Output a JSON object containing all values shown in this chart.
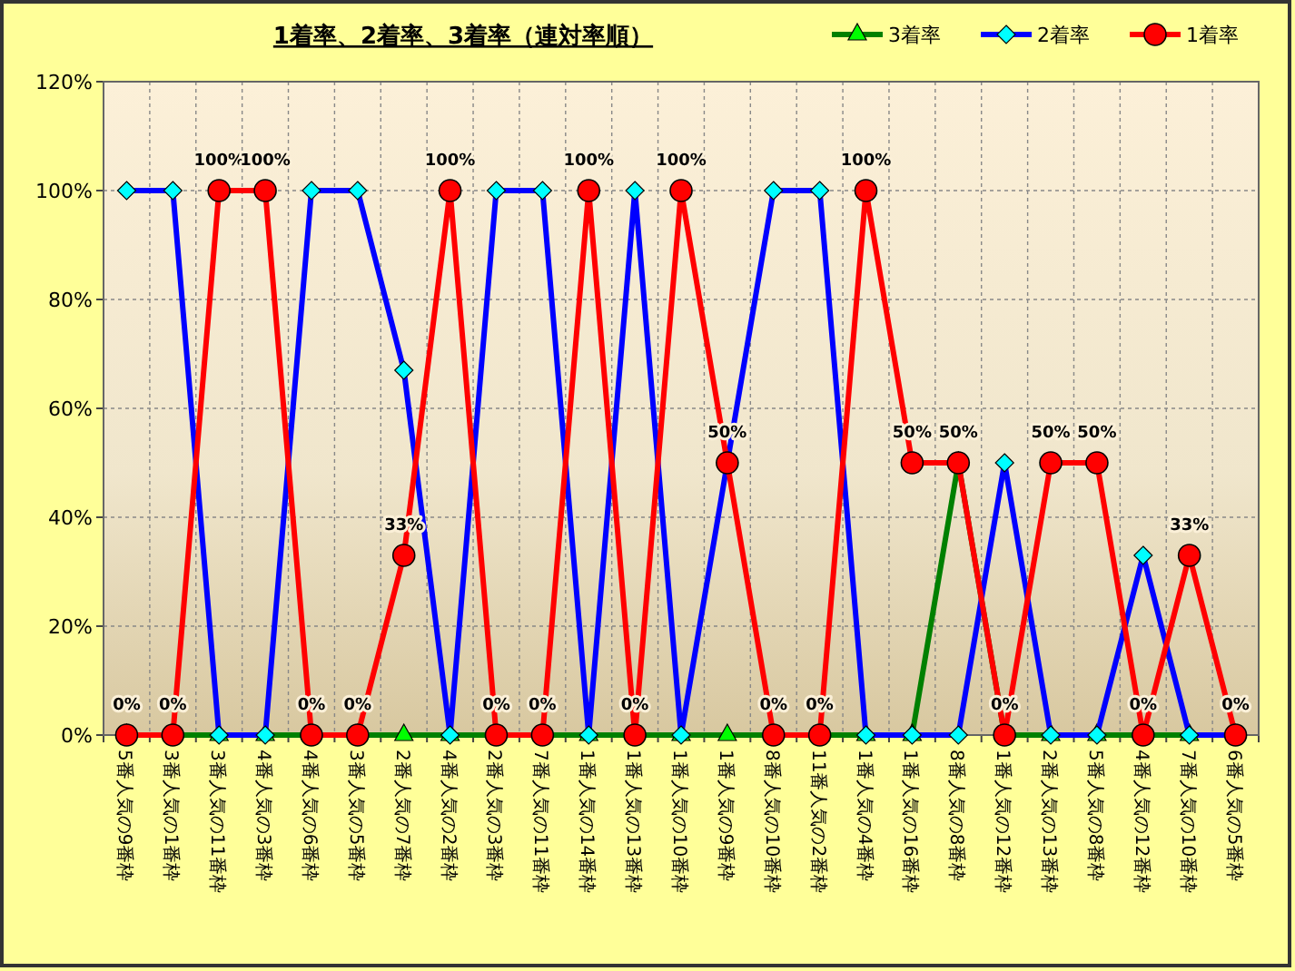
{
  "chart_data": {
    "type": "line",
    "title": "1着率、2着率、3着率（連対率順）",
    "categories": [
      "5番人気の9番枠",
      "3番人気の1番枠",
      "3番人気の11番枠",
      "4番人気の3番枠",
      "4番人気の6番枠",
      "3番人気の5番枠",
      "2番人気の7番枠",
      "4番人気の2番枠",
      "2番人気の3番枠",
      "7番人気の11番枠",
      "1番人気の14番枠",
      "1番人気の13番枠",
      "1番人気の10番枠",
      "1番人気の9番枠",
      "8番人気の10番枠",
      "11番人気の2番枠",
      "1番人気の4番枠",
      "1番人気の16番枠",
      "8番人気の8番枠",
      "1番人気の12番枠",
      "2番人気の13番枠",
      "5番人気の8番枠",
      "4番人気の12番枠",
      "7番人気の10番枠",
      "6番人気の5番枠"
    ],
    "series": [
      {
        "name": "3着率",
        "color": "#008000",
        "marker": "triangle",
        "values": [
          0,
          0,
          0,
          0,
          0,
          0,
          0,
          0,
          0,
          0,
          0,
          0,
          0,
          0,
          0,
          0,
          0,
          0,
          50,
          0,
          0,
          0,
          0,
          0,
          0
        ]
      },
      {
        "name": "2着率",
        "color": "#0000ff",
        "marker": "diamond",
        "values": [
          100,
          100,
          0,
          0,
          100,
          100,
          67,
          0,
          100,
          100,
          0,
          100,
          0,
          50,
          100,
          100,
          0,
          0,
          0,
          50,
          0,
          0,
          33,
          0,
          0
        ]
      },
      {
        "name": "1着率",
        "color": "#ff0000",
        "marker": "circle",
        "values": [
          0,
          0,
          100,
          100,
          0,
          0,
          33,
          100,
          0,
          0,
          100,
          0,
          100,
          50,
          0,
          0,
          100,
          50,
          50,
          0,
          50,
          50,
          0,
          33,
          0
        ],
        "value_labels": [
          "0%",
          "0%",
          "100%",
          "100%",
          "0%",
          "0%",
          "33%",
          "100%",
          "0%",
          "0%",
          "100%",
          "0%",
          "100%",
          "50%",
          "0%",
          "0%",
          "100%",
          "50%",
          "50%",
          "0%",
          "50%",
          "50%",
          "0%",
          "33%",
          "0%"
        ]
      }
    ],
    "ylim": [
      0,
      120
    ],
    "yticks": [
      {
        "value": 0,
        "label": "0%"
      },
      {
        "value": 20,
        "label": "20%"
      },
      {
        "value": 40,
        "label": "40%"
      },
      {
        "value": 60,
        "label": "60%"
      },
      {
        "value": 80,
        "label": "80%"
      },
      {
        "value": 100,
        "label": "100%"
      },
      {
        "value": 120,
        "label": "120%"
      }
    ],
    "grid": true,
    "legend": "top right",
    "line_style": "solid"
  }
}
